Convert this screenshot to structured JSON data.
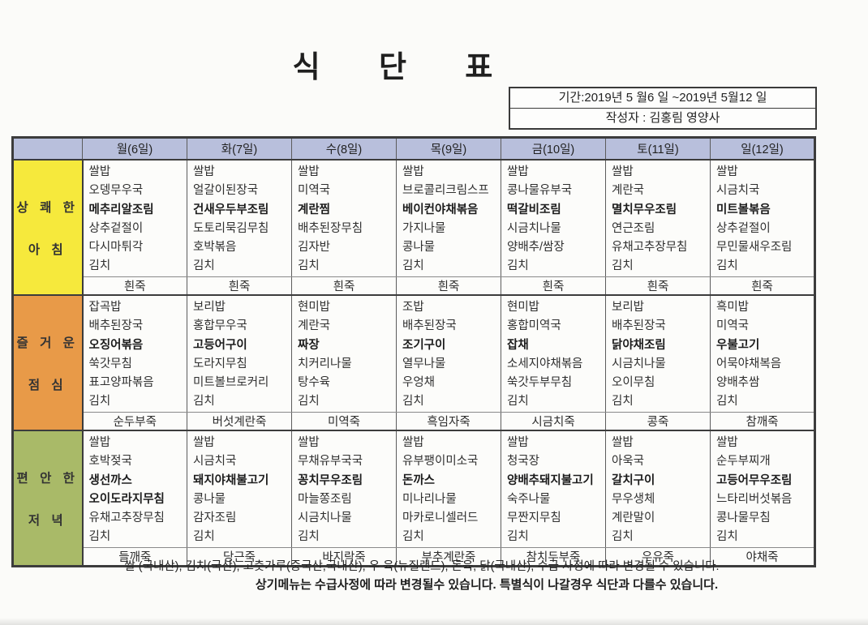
{
  "title": "식 단 표",
  "info_box": {
    "period": "기간:2019년 5 월6 일 ~2019년  5월12 일",
    "author": "작성자 : 김홍림 영양사"
  },
  "colors": {
    "header_bg": "#b8bfdc",
    "breakfast_bg": "#f6e93c",
    "lunch_bg": "#e89a48",
    "dinner_bg": "#a9ba68"
  },
  "table": {
    "day_headers": [
      "월(6일)",
      "화(7일)",
      "수(8일)",
      "목(9일)",
      "금(10일)",
      "토(11일)",
      "일(12일)"
    ],
    "sections": [
      {
        "id": "breakfast",
        "label_lines": [
          "상 쾌 한",
          "아 침"
        ],
        "menus": [
          [
            {
              "t": "쌀밥",
              "b": false
            },
            {
              "t": "오뎅무우국",
              "b": false
            },
            {
              "t": "메추리알조림",
              "b": true
            },
            {
              "t": "상추겉절이",
              "b": false
            },
            {
              "t": "다시마튀각",
              "b": false
            },
            {
              "t": "김치",
              "b": false
            }
          ],
          [
            {
              "t": "쌀밥",
              "b": false
            },
            {
              "t": "얼갈이된장국",
              "b": false
            },
            {
              "t": "건새우두부조림",
              "b": true
            },
            {
              "t": "도토리묵김무침",
              "b": false
            },
            {
              "t": "호박볶음",
              "b": false
            },
            {
              "t": "김치",
              "b": false
            }
          ],
          [
            {
              "t": "쌀밥",
              "b": false
            },
            {
              "t": "미역국",
              "b": false
            },
            {
              "t": "계란찜",
              "b": true
            },
            {
              "t": "배추된장무침",
              "b": false
            },
            {
              "t": "김자반",
              "b": false
            },
            {
              "t": "김치",
              "b": false
            }
          ],
          [
            {
              "t": "쌀밥",
              "b": false
            },
            {
              "t": "브로콜리크림스프",
              "b": false
            },
            {
              "t": "베이컨야채볶음",
              "b": true
            },
            {
              "t": "가지나물",
              "b": false
            },
            {
              "t": "콩나물",
              "b": false
            },
            {
              "t": "김치",
              "b": false
            }
          ],
          [
            {
              "t": "쌀밥",
              "b": false
            },
            {
              "t": "콩나물유부국",
              "b": false
            },
            {
              "t": "떡갈비조림",
              "b": true
            },
            {
              "t": "시금치나물",
              "b": false
            },
            {
              "t": "양배추/쌈장",
              "b": false
            },
            {
              "t": "김치",
              "b": false
            }
          ],
          [
            {
              "t": "쌀밥",
              "b": false
            },
            {
              "t": "계란국",
              "b": false
            },
            {
              "t": "멸치무우조림",
              "b": true
            },
            {
              "t": "연근조림",
              "b": false
            },
            {
              "t": "유채고추장무침",
              "b": false
            },
            {
              "t": "김치",
              "b": false
            }
          ],
          [
            {
              "t": "쌀밥",
              "b": false
            },
            {
              "t": "시금치국",
              "b": false
            },
            {
              "t": "미트볼볶음",
              "b": true
            },
            {
              "t": "상추겉절이",
              "b": false
            },
            {
              "t": "무민물새우조림",
              "b": false
            },
            {
              "t": "김치",
              "b": false
            }
          ]
        ],
        "porridge": [
          "흰죽",
          "흰죽",
          "흰죽",
          "흰죽",
          "흰죽",
          "흰죽",
          "흰죽"
        ]
      },
      {
        "id": "lunch",
        "label_lines": [
          "즐 거 운",
          "점 심"
        ],
        "menus": [
          [
            {
              "t": "잡곡밥",
              "b": false
            },
            {
              "t": "배추된장국",
              "b": false
            },
            {
              "t": "오징어볶음",
              "b": true
            },
            {
              "t": "쑥갓무침",
              "b": false
            },
            {
              "t": "표고양파볶음",
              "b": false
            },
            {
              "t": "김치",
              "b": false
            }
          ],
          [
            {
              "t": "보리밥",
              "b": false
            },
            {
              "t": "홍합무우국",
              "b": false
            },
            {
              "t": "고등어구이",
              "b": true
            },
            {
              "t": "도라지무침",
              "b": false
            },
            {
              "t": "미트볼브로커리",
              "b": false
            },
            {
              "t": "김치",
              "b": false
            }
          ],
          [
            {
              "t": "현미밥",
              "b": false
            },
            {
              "t": "계란국",
              "b": false
            },
            {
              "t": "짜장",
              "b": true
            },
            {
              "t": "치커리나물",
              "b": false
            },
            {
              "t": "탕수육",
              "b": false
            },
            {
              "t": "김치",
              "b": false
            }
          ],
          [
            {
              "t": "조밥",
              "b": false
            },
            {
              "t": "배추된장국",
              "b": false
            },
            {
              "t": "조기구이",
              "b": true
            },
            {
              "t": "열무나물",
              "b": false
            },
            {
              "t": "우엉채",
              "b": false
            },
            {
              "t": "김치",
              "b": false
            }
          ],
          [
            {
              "t": "현미밥",
              "b": false
            },
            {
              "t": "홍합미역국",
              "b": false
            },
            {
              "t": "잡채",
              "b": true
            },
            {
              "t": "소세지야채볶음",
              "b": false
            },
            {
              "t": "쑥갓두부무침",
              "b": false
            },
            {
              "t": "김치",
              "b": false
            }
          ],
          [
            {
              "t": "보리밥",
              "b": false
            },
            {
              "t": "배추된장국",
              "b": false
            },
            {
              "t": "닭야채조림",
              "b": true
            },
            {
              "t": "시금치나물",
              "b": false
            },
            {
              "t": "오이무침",
              "b": false
            },
            {
              "t": "김치",
              "b": false
            }
          ],
          [
            {
              "t": "흑미밥",
              "b": false
            },
            {
              "t": "미역국",
              "b": false
            },
            {
              "t": "우불고기",
              "b": true
            },
            {
              "t": "어묵야채복음",
              "b": false
            },
            {
              "t": "양배추쌈",
              "b": false
            },
            {
              "t": "김치",
              "b": false
            }
          ]
        ],
        "porridge": [
          "순두부죽",
          "버섯계란죽",
          "미역죽",
          "흑임자죽",
          "시금치죽",
          "콩죽",
          "참깨죽"
        ]
      },
      {
        "id": "dinner",
        "label_lines": [
          "편 안 한",
          "저 녁"
        ],
        "menus": [
          [
            {
              "t": "쌀밥",
              "b": false
            },
            {
              "t": "호박젖국",
              "b": false
            },
            {
              "t": "생선까스",
              "b": true
            },
            {
              "t": "오이도라지무침",
              "b": true
            },
            {
              "t": "유채고추장무침",
              "b": false
            },
            {
              "t": "김치",
              "b": false
            }
          ],
          [
            {
              "t": "쌀밥",
              "b": false
            },
            {
              "t": "시금치국",
              "b": false
            },
            {
              "t": "돼지야채불고기",
              "b": true
            },
            {
              "t": "콩나물",
              "b": false
            },
            {
              "t": "감자조림",
              "b": false
            },
            {
              "t": "김치",
              "b": false
            }
          ],
          [
            {
              "t": "쌀밥",
              "b": false
            },
            {
              "t": "무채유부국국",
              "b": false
            },
            {
              "t": "꽁치무우조림",
              "b": true
            },
            {
              "t": "마늘쫑조림",
              "b": false
            },
            {
              "t": "시금치나물",
              "b": false
            },
            {
              "t": "김치",
              "b": false
            }
          ],
          [
            {
              "t": "쌀밥",
              "b": false
            },
            {
              "t": "유부팽이미소국",
              "b": false
            },
            {
              "t": "돈까스",
              "b": true
            },
            {
              "t": "미나리나물",
              "b": false
            },
            {
              "t": "마카로니셀러드",
              "b": false
            },
            {
              "t": "김치",
              "b": false
            }
          ],
          [
            {
              "t": "쌀밥",
              "b": false
            },
            {
              "t": "청국장",
              "b": false
            },
            {
              "t": "양배추돼지불고기",
              "b": true
            },
            {
              "t": "숙주나물",
              "b": false
            },
            {
              "t": "무짠지무침",
              "b": false
            },
            {
              "t": "김치",
              "b": false
            }
          ],
          [
            {
              "t": "쌀밥",
              "b": false
            },
            {
              "t": "아욱국",
              "b": false
            },
            {
              "t": "갈치구이",
              "b": true
            },
            {
              "t": "무우생체",
              "b": false
            },
            {
              "t": "계란말이",
              "b": false
            },
            {
              "t": "김치",
              "b": false
            }
          ],
          [
            {
              "t": "쌀밥",
              "b": false
            },
            {
              "t": "순두부찌개",
              "b": false
            },
            {
              "t": "고등어무우조림",
              "b": true
            },
            {
              "t": "느타리버섯볶음",
              "b": false
            },
            {
              "t": "콩나물무침",
              "b": false
            },
            {
              "t": "김치",
              "b": false
            }
          ]
        ],
        "porridge": [
          "들깨죽",
          "당근죽",
          "바지락죽",
          "부추계란죽",
          "참치두부죽",
          "우유죽",
          "야채죽"
        ]
      }
    ]
  },
  "footer": {
    "line1": "쌀 (국내산), 김치(국산), 고춧가루(중국산,국내산), 우 육(뉴질랜드), 돈육, 닭(국내산), 수급 사정에 따라 변경될 수 있습니다.",
    "line2": "상기메뉴는  수급사정에 따라 변경될수 있습니다. 특별식이 나갈경우 식단과 다를수 있습니다."
  }
}
